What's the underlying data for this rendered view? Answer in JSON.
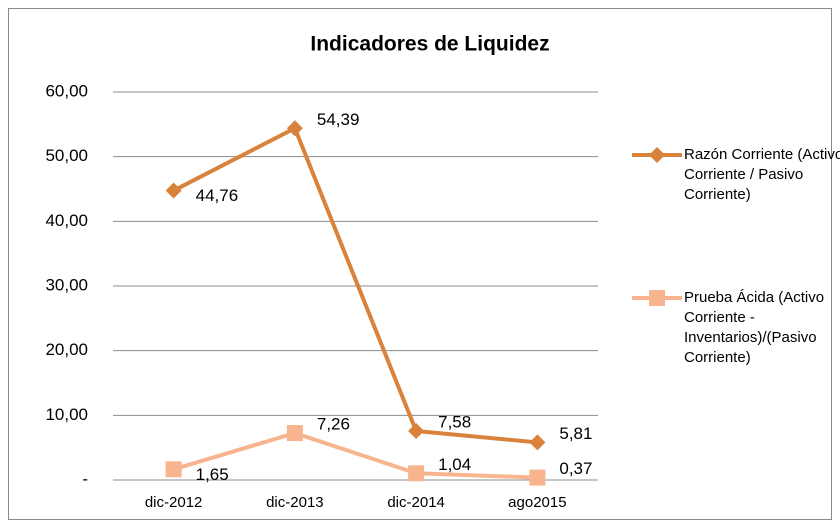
{
  "chart_data": {
    "type": "line",
    "title": "Indicadores de Liquidez",
    "categories": [
      "dic-2012",
      "dic-2013",
      "dic-2014",
      "ago2015"
    ],
    "series": [
      {
        "name": "Razón Corriente (Activo Corriente / Pasivo Corriente)",
        "color": "#d9823b",
        "marker": "diamond",
        "values": [
          44.76,
          54.39,
          7.58,
          5.81
        ],
        "value_labels": [
          "44,76",
          "54,39",
          "7,58",
          "5,81"
        ]
      },
      {
        "name": "Prueba Ácida (Activo Corriente - Inventarios)/(Pasivo Corriente)",
        "color": "#f8b48f",
        "marker": "square",
        "values": [
          1.65,
          7.26,
          1.04,
          0.37
        ],
        "value_labels": [
          "1,65",
          "7,26",
          "1,04",
          "0,37"
        ]
      }
    ],
    "ylim": [
      0,
      60
    ],
    "yticks": [
      {
        "value": 0,
        "label": "-"
      },
      {
        "value": 10,
        "label": "10,00"
      },
      {
        "value": 20,
        "label": "20,00"
      },
      {
        "value": 30,
        "label": "30,00"
      },
      {
        "value": 40,
        "label": "40,00"
      },
      {
        "value": 50,
        "label": "50,00"
      },
      {
        "value": 60,
        "label": "60,00"
      }
    ],
    "grid": true,
    "legend": "right"
  }
}
